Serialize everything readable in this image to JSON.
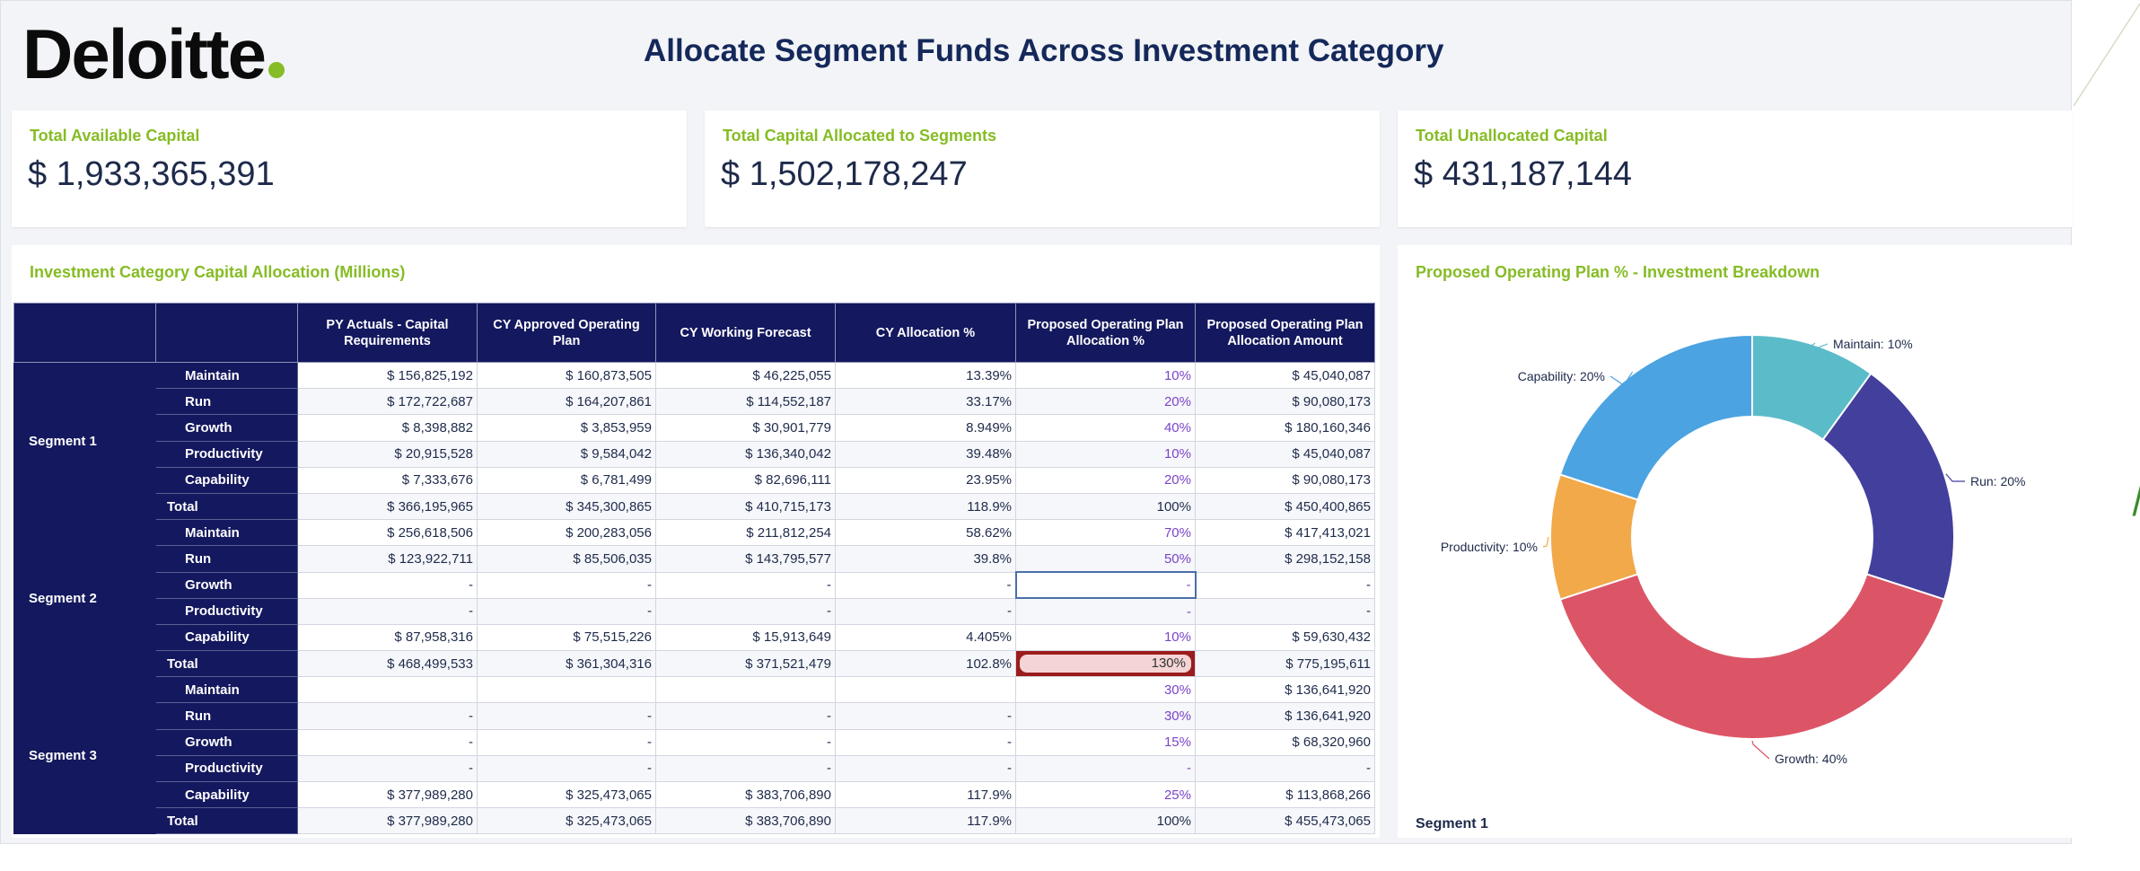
{
  "header": {
    "logo_text": "Deloitte",
    "title": "Allocate Segment Funds Across Investment Category"
  },
  "kpis": [
    {
      "label": "Total Available Capital",
      "value": "$ 1,933,365,391"
    },
    {
      "label": "Total Capital Allocated to Segments",
      "value": "$ 1,502,178,247"
    },
    {
      "label": "Total Unallocated Capital",
      "value": "$ 431,187,144"
    }
  ],
  "table_panel": {
    "title": "Investment Category Capital Allocation (Millions)",
    "columns": [
      "PY Actuals - Capital Requirements",
      "CY Approved Operating Plan",
      "CY Working Forecast",
      "CY Allocation %",
      "Proposed Operating Plan Allocation %",
      "Proposed Operating Plan Allocation Amount"
    ],
    "segments": [
      {
        "name": "Segment 1",
        "rows": [
          {
            "category": "Maintain",
            "values": [
              "$ 156,825,192",
              "$ 160,873,505",
              "$ 46,225,055",
              "13.39%",
              "10%",
              "$ 45,040,087"
            ]
          },
          {
            "category": "Run",
            "values": [
              "$ 172,722,687",
              "$ 164,207,861",
              "$ 114,552,187",
              "33.17%",
              "20%",
              "$ 90,080,173"
            ]
          },
          {
            "category": "Growth",
            "values": [
              "$ 8,398,882",
              "$ 3,853,959",
              "$ 30,901,779",
              "8.949%",
              "40%",
              "$ 180,160,346"
            ]
          },
          {
            "category": "Productivity",
            "values": [
              "$ 20,915,528",
              "$ 9,584,042",
              "$ 136,340,042",
              "39.48%",
              "10%",
              "$ 45,040,087"
            ]
          },
          {
            "category": "Capability",
            "values": [
              "$ 7,333,676",
              "$ 6,781,499",
              "$ 82,696,111",
              "23.95%",
              "20%",
              "$ 90,080,173"
            ]
          },
          {
            "category": "Total",
            "values": [
              "$ 366,195,965",
              "$ 345,300,865",
              "$ 410,715,173",
              "118.9%",
              "100%",
              "$ 450,400,865"
            ]
          }
        ]
      },
      {
        "name": "Segment 2",
        "rows": [
          {
            "category": "Maintain",
            "values": [
              "$ 256,618,506",
              "$ 200,283,056",
              "$ 211,812,254",
              "58.62%",
              "70%",
              "$ 417,413,021"
            ]
          },
          {
            "category": "Run",
            "values": [
              "$ 123,922,711",
              "$ 85,506,035",
              "$ 143,795,577",
              "39.8%",
              "50%",
              "$ 298,152,158"
            ]
          },
          {
            "category": "Growth",
            "values": [
              "-",
              "-",
              "-",
              "-",
              "-",
              "-"
            ]
          },
          {
            "category": "Productivity",
            "values": [
              "-",
              "-",
              "-",
              "-",
              "-",
              "-"
            ]
          },
          {
            "category": "Capability",
            "values": [
              "$ 87,958,316",
              "$ 75,515,226",
              "$ 15,913,649",
              "4.405%",
              "10%",
              "$ 59,630,432"
            ]
          },
          {
            "category": "Total",
            "values": [
              "$ 468,499,533",
              "$ 361,304,316",
              "$ 371,521,479",
              "102.8%",
              "130%",
              "$ 775,195,611"
            ]
          }
        ]
      },
      {
        "name": "Segment 3",
        "rows": [
          {
            "category": "Maintain",
            "values": [
              "",
              "",
              "",
              "",
              "30%",
              "$ 136,641,920"
            ]
          },
          {
            "category": "Run",
            "values": [
              "-",
              "-",
              "-",
              "-",
              "30%",
              "$ 136,641,920"
            ]
          },
          {
            "category": "Growth",
            "values": [
              "-",
              "-",
              "-",
              "-",
              "15%",
              "$ 68,320,960"
            ]
          },
          {
            "category": "Productivity",
            "values": [
              "-",
              "-",
              "-",
              "-",
              "-",
              "-"
            ]
          },
          {
            "category": "Capability",
            "values": [
              "$ 377,989,280",
              "$ 325,473,065",
              "$ 383,706,890",
              "117.9%",
              "25%",
              "$ 113,868,266"
            ]
          },
          {
            "category": "Total",
            "values": [
              "$ 377,989,280",
              "$ 325,473,065",
              "$ 383,706,890",
              "117.9%",
              "100%",
              "$ 455,473,065"
            ]
          }
        ]
      }
    ]
  },
  "chart_panel": {
    "title": "Proposed Operating Plan % - Investment Breakdown",
    "footer": "Segment 1"
  },
  "chart_data": {
    "type": "pie",
    "donut": true,
    "title": "Proposed Operating Plan % - Investment Breakdown",
    "slices": [
      {
        "label": "Maintain",
        "value": 10,
        "text": "Maintain: 10%",
        "color": "#5bbcc9"
      },
      {
        "label": "Run",
        "value": 20,
        "text": "Run: 20%",
        "color": "#433f9d"
      },
      {
        "label": "Growth",
        "value": 40,
        "text": "Growth: 40%",
        "color": "#dc5566"
      },
      {
        "label": "Productivity",
        "value": 10,
        "text": "Productivity: 10%",
        "color": "#f1a94a"
      },
      {
        "label": "Capability",
        "value": 20,
        "text": "Capability: 20%",
        "color": "#4ba3e1"
      }
    ]
  },
  "colors": {
    "brand_green": "#86bc25",
    "navy": "#14185e",
    "title_navy": "#14285a",
    "proposed_purple": "#7a44c8",
    "error_red": "#9b1c1c"
  }
}
